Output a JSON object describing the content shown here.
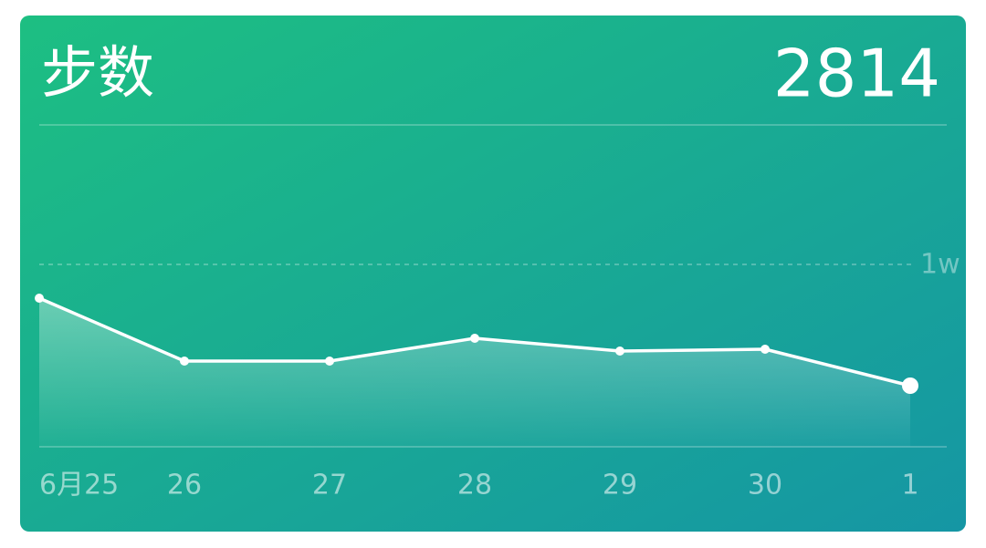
{
  "chart_data": {
    "type": "line",
    "title": "步数",
    "value": "2814",
    "categories": [
      "6月25",
      "26",
      "27",
      "28",
      "29",
      "30",
      "1"
    ],
    "values": [
      8150,
      4700,
      4700,
      5950,
      5250,
      5350,
      3350
    ],
    "color": "#ffffff",
    "ylim": [
      0,
      17650
    ],
    "yticks": [
      {
        "value": 10000,
        "label": "1w"
      }
    ]
  }
}
